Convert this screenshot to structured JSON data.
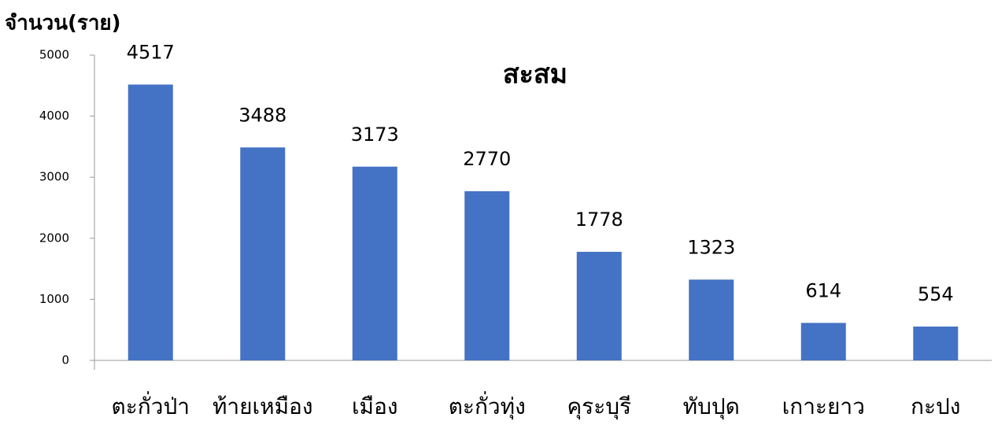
{
  "chart_data": {
    "type": "bar",
    "title": "สะสม",
    "y_label": "จำนวน(ราย)",
    "categories": [
      "ตะกั่วป่า",
      "ท้ายเหมือง",
      "เมือง",
      "ตะกั่วทุ่ง",
      "คุระบุรี",
      "ทับปุด",
      "เกาะยาว",
      "กะปง"
    ],
    "values": [
      4517,
      3488,
      3173,
      2770,
      1778,
      1323,
      614,
      554
    ],
    "color": "#4472c4",
    "ylim": [
      0,
      5000
    ],
    "yticks": [
      0,
      1000,
      2000,
      3000,
      4000,
      5000
    ],
    "grid": false
  }
}
